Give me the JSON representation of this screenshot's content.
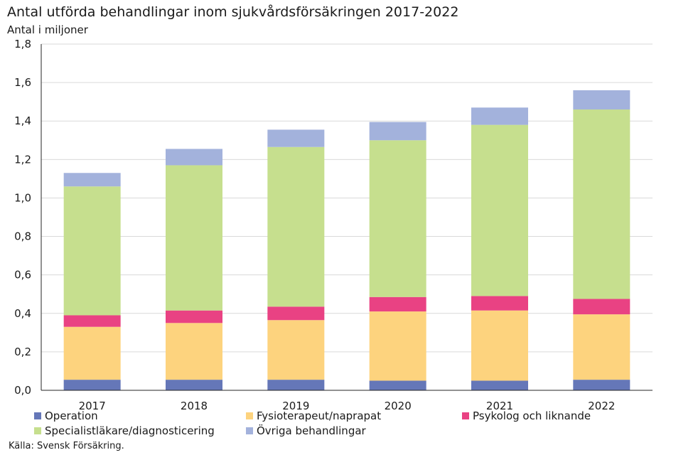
{
  "chart_data": {
    "type": "bar",
    "stacked": true,
    "title": "Antal utförda behandlingar inom sjukvårdsförsäkringen 2017-2022",
    "subtitle": "Antal i miljoner",
    "xlabel": "",
    "ylabel": "",
    "categories": [
      "2017",
      "2018",
      "2019",
      "2020",
      "2021",
      "2022"
    ],
    "ylim": [
      0,
      1.8
    ],
    "yticks": [
      "0,0",
      "0,2",
      "0,4",
      "0,6",
      "0,8",
      "1,0",
      "1,2",
      "1,4",
      "1,6",
      "1,8"
    ],
    "grid": true,
    "legend_position": "bottom",
    "series": [
      {
        "name": "Operation",
        "color": "#6577b8",
        "values": [
          0.055,
          0.055,
          0.055,
          0.05,
          0.05,
          0.055
        ]
      },
      {
        "name": "Fysioterapeut/naprapat",
        "color": "#fdd37e",
        "values": [
          0.275,
          0.295,
          0.31,
          0.36,
          0.365,
          0.34
        ]
      },
      {
        "name": "Psykolog och liknande",
        "color": "#e94283",
        "values": [
          0.06,
          0.065,
          0.07,
          0.075,
          0.075,
          0.08
        ]
      },
      {
        "name": "Specialistläkare/diagnosticering",
        "color": "#c6df8e",
        "values": [
          0.67,
          0.755,
          0.83,
          0.815,
          0.89,
          0.985
        ]
      },
      {
        "name": "Övriga behandlingar",
        "color": "#a3b2dc",
        "values": [
          0.07,
          0.085,
          0.09,
          0.095,
          0.09,
          0.1
        ]
      }
    ],
    "source": "Källa: Svensk Försäkring."
  }
}
